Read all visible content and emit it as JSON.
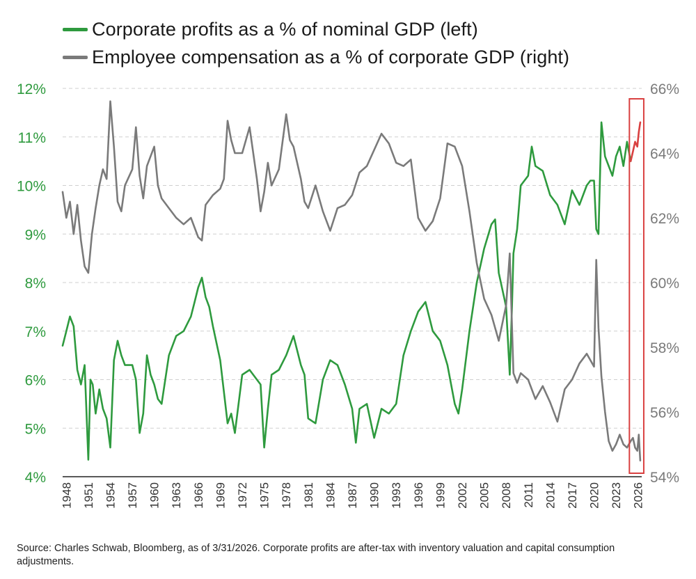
{
  "legend": {
    "series_left": "Corporate profits as a % of nominal GDP (left)",
    "series_right": "Employee compensation as a % of corporate GDP (right)"
  },
  "source_note": "Source: Charles Schwab, Bloomberg, as of 3/31/2026.  Corporate profits are after-tax with inventory valuation and capital consumption adjustments.",
  "colors": {
    "profits": "#2e9a3e",
    "compensation": "#7a7a7a",
    "highlight": "#d94040",
    "grid": "#cfcfcf"
  },
  "chart_data": {
    "type": "line",
    "title": "",
    "x_tick_labels": [
      "1948",
      "1951",
      "1954",
      "1957",
      "1960",
      "1963",
      "1966",
      "1969",
      "1972",
      "1975",
      "1978",
      "1981",
      "1984",
      "1987",
      "1990",
      "1993",
      "1996",
      "1999",
      "2002",
      "2005",
      "2008",
      "2011",
      "2014",
      "2017",
      "2020",
      "2023",
      "2026"
    ],
    "xlim": [
      1947.5,
      2026.5
    ],
    "y_left": {
      "ylim": [
        4,
        12
      ],
      "tick_labels": [
        "12%",
        "11%",
        "10%",
        "9%",
        "8%",
        "7%",
        "6%",
        "5%",
        "4%"
      ],
      "tick_values": [
        12,
        11,
        10,
        9,
        8,
        7,
        6,
        5,
        4
      ]
    },
    "y_right": {
      "ylim": [
        54,
        66
      ],
      "tick_labels": [
        "66%",
        "64%",
        "62%",
        "60%",
        "58%",
        "56%",
        "54%"
      ],
      "tick_values": [
        66,
        64,
        62,
        60,
        58,
        56,
        54
      ]
    },
    "highlight_box": {
      "x_range": [
        2025.2,
        2026.4
      ]
    },
    "series": [
      {
        "name": "Corporate profits as a % of nominal GDP (left)",
        "axis": "left",
        "x": [
          1947.5,
          1948.0,
          1948.5,
          1949.0,
          1949.5,
          1950.0,
          1950.5,
          1951.0,
          1951.3,
          1951.6,
          1952.0,
          1952.5,
          1953.0,
          1953.5,
          1954.0,
          1954.5,
          1955.0,
          1955.5,
          1956.0,
          1957.0,
          1957.5,
          1958.0,
          1958.5,
          1959.0,
          1959.5,
          1960.0,
          1960.5,
          1961.0,
          1962.0,
          1963.0,
          1964.0,
          1965.0,
          1965.5,
          1966.0,
          1966.5,
          1967.0,
          1967.5,
          1968.0,
          1969.0,
          1970.0,
          1970.5,
          1971.0,
          1972.0,
          1973.0,
          1974.0,
          1974.5,
          1975.0,
          1975.5,
          1976.0,
          1977.0,
          1978.0,
          1979.0,
          1980.0,
          1980.5,
          1981.0,
          1982.0,
          1983.0,
          1984.0,
          1985.0,
          1986.0,
          1987.0,
          1987.5,
          1988.0,
          1989.0,
          1990.0,
          1991.0,
          1992.0,
          1993.0,
          1994.0,
          1995.0,
          1996.0,
          1997.0,
          1998.0,
          1999.0,
          2000.0,
          2001.0,
          2001.5,
          2002.0,
          2003.0,
          2004.0,
          2005.0,
          2006.0,
          2006.5,
          2007.0,
          2008.0,
          2008.5,
          2008.8,
          2009.0,
          2009.5,
          2010.0,
          2011.0,
          2011.5,
          2012.0,
          2013.0,
          2014.0,
          2015.0,
          2016.0,
          2017.0,
          2018.0,
          2019.0,
          2019.5,
          2020.0,
          2020.3,
          2020.6,
          2021.0,
          2021.5,
          2022.0,
          2022.5,
          2023.0,
          2023.5,
          2024.0,
          2024.5,
          2025.0,
          2025.3,
          2025.6,
          2025.9,
          2026.1,
          2026.3
        ],
        "values": [
          6.7,
          7.0,
          7.3,
          7.1,
          6.2,
          5.9,
          6.3,
          4.35,
          6.0,
          5.9,
          5.3,
          5.8,
          5.4,
          5.2,
          4.6,
          6.4,
          6.8,
          6.5,
          6.3,
          6.3,
          6.0,
          4.9,
          5.3,
          6.5,
          6.1,
          5.9,
          5.6,
          5.5,
          6.5,
          6.9,
          7.0,
          7.3,
          7.6,
          7.9,
          8.1,
          7.7,
          7.5,
          7.1,
          6.4,
          5.1,
          5.3,
          4.9,
          6.1,
          6.2,
          6.0,
          5.9,
          4.6,
          5.4,
          6.1,
          6.2,
          6.5,
          6.9,
          6.3,
          6.1,
          5.2,
          5.1,
          6.0,
          6.4,
          6.3,
          5.9,
          5.4,
          4.7,
          5.4,
          5.5,
          4.8,
          5.4,
          5.3,
          5.5,
          6.5,
          7.0,
          7.4,
          7.6,
          7.0,
          6.8,
          6.3,
          5.5,
          5.3,
          5.8,
          7.0,
          8.0,
          8.7,
          9.2,
          9.3,
          8.2,
          7.5,
          6.1,
          7.5,
          8.6,
          9.1,
          10.0,
          10.2,
          10.8,
          10.4,
          10.3,
          9.8,
          9.6,
          9.2,
          9.9,
          9.6,
          10.0,
          10.1,
          10.1,
          9.1,
          9.0,
          11.3,
          10.6,
          10.4,
          10.2,
          10.6,
          10.8,
          10.4,
          10.9,
          10.5,
          10.7,
          10.9,
          10.8,
          11.1,
          11.3
        ],
        "highlight_from_x": 2025.2
      },
      {
        "name": "Employee compensation as a % of corporate GDP (right)",
        "axis": "right",
        "x": [
          1947.5,
          1948.0,
          1948.5,
          1949.0,
          1949.5,
          1950.0,
          1950.5,
          1951.0,
          1951.5,
          1952.0,
          1952.5,
          1953.0,
          1953.5,
          1954.0,
          1954.5,
          1955.0,
          1955.5,
          1956.0,
          1957.0,
          1957.5,
          1958.0,
          1958.5,
          1959.0,
          1960.0,
          1960.5,
          1961.0,
          1962.0,
          1963.0,
          1964.0,
          1965.0,
          1966.0,
          1966.5,
          1967.0,
          1968.0,
          1969.0,
          1969.5,
          1970.0,
          1970.5,
          1971.0,
          1972.0,
          1973.0,
          1974.0,
          1974.5,
          1975.0,
          1975.5,
          1976.0,
          1977.0,
          1978.0,
          1978.5,
          1979.0,
          1980.0,
          1980.5,
          1981.0,
          1982.0,
          1983.0,
          1984.0,
          1985.0,
          1986.0,
          1987.0,
          1988.0,
          1989.0,
          1990.0,
          1991.0,
          1992.0,
          1993.0,
          1994.0,
          1995.0,
          1996.0,
          1997.0,
          1998.0,
          1999.0,
          2000.0,
          2001.0,
          2002.0,
          2003.0,
          2004.0,
          2005.0,
          2006.0,
          2007.0,
          2008.0,
          2008.5,
          2009.0,
          2009.5,
          2010.0,
          2011.0,
          2012.0,
          2013.0,
          2014.0,
          2015.0,
          2016.0,
          2017.0,
          2018.0,
          2019.0,
          2019.5,
          2020.0,
          2020.3,
          2020.6,
          2021.0,
          2021.5,
          2022.0,
          2022.5,
          2023.0,
          2023.5,
          2024.0,
          2024.5,
          2025.0,
          2025.3,
          2025.6,
          2025.9,
          2026.1,
          2026.3
        ],
        "values": [
          62.8,
          62.0,
          62.5,
          61.5,
          62.4,
          61.3,
          60.5,
          60.3,
          61.5,
          62.3,
          63.0,
          63.5,
          63.2,
          65.6,
          64.2,
          62.5,
          62.2,
          63.0,
          63.5,
          64.8,
          63.3,
          62.6,
          63.6,
          64.2,
          63.0,
          62.6,
          62.3,
          62.0,
          61.8,
          62.0,
          61.4,
          61.3,
          62.4,
          62.7,
          62.9,
          63.2,
          65.0,
          64.4,
          64.0,
          64.0,
          64.8,
          63.2,
          62.2,
          62.8,
          63.7,
          63.0,
          63.5,
          65.2,
          64.4,
          64.2,
          63.2,
          62.5,
          62.3,
          63.0,
          62.2,
          61.6,
          62.3,
          62.4,
          62.7,
          63.4,
          63.6,
          64.1,
          64.6,
          64.3,
          63.7,
          63.6,
          63.8,
          62.0,
          61.6,
          61.9,
          62.6,
          64.3,
          64.2,
          63.6,
          62.2,
          60.6,
          59.5,
          59.0,
          58.2,
          59.3,
          60.9,
          57.2,
          56.9,
          57.2,
          57.0,
          56.4,
          56.8,
          56.3,
          55.7,
          56.7,
          57.0,
          57.5,
          57.8,
          57.6,
          57.4,
          60.7,
          58.6,
          57.1,
          56.0,
          55.1,
          54.8,
          55.0,
          55.3,
          55.0,
          54.9,
          55.1,
          55.2,
          54.9,
          54.8,
          55.3,
          54.5
        ]
      }
    ]
  }
}
